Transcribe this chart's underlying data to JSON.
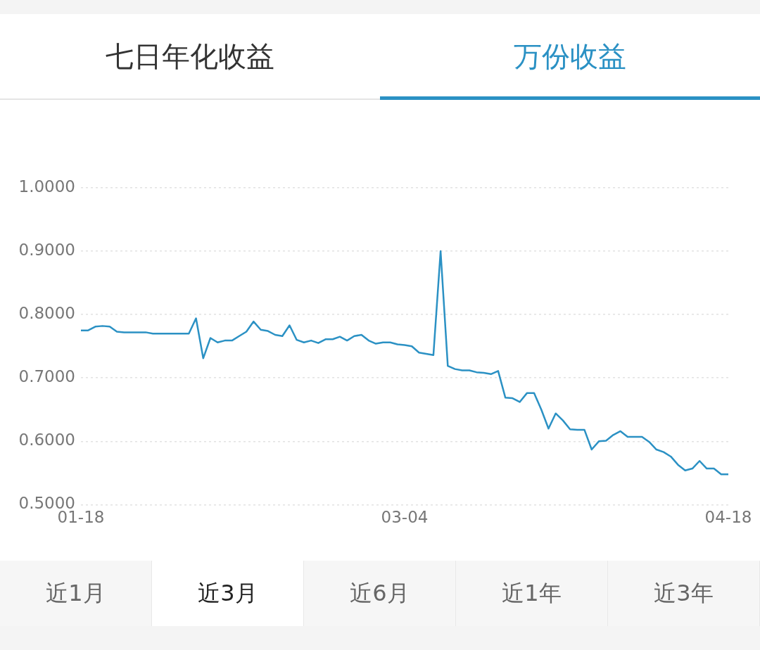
{
  "chart_data": {
    "type": "line",
    "annotations": [
      "七日年化收益",
      "万份收益",
      "近1月",
      "近3月",
      "近6月",
      "近1年",
      "近3年"
    ],
    "x": [
      "--01-18",
      "--01-19",
      "--01-20",
      "--01-21",
      "--01-22",
      "--01-23",
      "--01-24",
      "--01-25",
      "--01-26",
      "--01-27",
      "--01-28",
      "--01-29",
      "--01-30",
      "--01-31",
      "--02-01",
      "--02-02",
      "--02-03",
      "--02-04",
      "--02-05",
      "--02-06",
      "--02-07",
      "--02-08",
      "--02-09",
      "--02-10",
      "--02-11",
      "--02-12",
      "--02-13",
      "--02-14",
      "--02-15",
      "--02-16",
      "--02-17",
      "--02-18",
      "--02-19",
      "--02-20",
      "--02-21",
      "--02-22",
      "--02-23",
      "--02-24",
      "--02-25",
      "--02-26",
      "--02-27",
      "--02-28",
      "--03-01",
      "--03-02",
      "--03-03",
      "--03-04",
      "--03-05",
      "--03-06",
      "--03-07",
      "--03-08",
      "--03-09",
      "--03-10",
      "--03-11",
      "--03-12",
      "--03-13",
      "--03-14",
      "--03-15",
      "--03-16",
      "--03-17",
      "--03-18",
      "--03-19",
      "--03-20",
      "--03-21",
      "--03-22",
      "--03-23",
      "--03-24",
      "--03-25",
      "--03-26",
      "--03-27",
      "--03-28",
      "--03-29",
      "--03-30",
      "--03-31",
      "--04-01",
      "--04-02",
      "--04-03",
      "--04-04",
      "--04-05",
      "--04-06",
      "--04-07",
      "--04-08",
      "--04-09",
      "--04-10",
      "--04-11",
      "--04-12",
      "--04-13",
      "--04-14",
      "--04-15",
      "--04-16",
      "--04-17",
      "--04-18"
    ],
    "series": [
      {
        "color": "#2b91c4",
        "values": [
          0.775,
          0.775,
          0.781,
          0.782,
          0.781,
          0.773,
          0.772,
          0.772,
          0.772,
          0.772,
          0.77,
          0.77,
          0.77,
          0.77,
          0.77,
          0.77,
          0.794,
          0.731,
          0.763,
          0.756,
          0.759,
          0.759,
          0.766,
          0.773,
          0.789,
          0.776,
          0.774,
          0.768,
          0.766,
          0.783,
          0.76,
          0.756,
          0.759,
          0.755,
          0.761,
          0.761,
          0.765,
          0.759,
          0.766,
          0.768,
          0.759,
          0.754,
          0.756,
          0.756,
          0.753,
          0.752,
          0.75,
          0.74,
          0.738,
          0.736,
          0.9,
          0.719,
          0.714,
          0.712,
          0.712,
          0.709,
          0.708,
          0.706,
          0.711,
          0.669,
          0.668,
          0.662,
          0.676,
          0.676,
          0.65,
          0.62,
          0.644,
          0.633,
          0.619,
          0.618,
          0.618,
          0.587,
          0.6,
          0.601,
          0.61,
          0.616,
          0.607,
          0.607,
          0.607,
          0.599,
          0.587,
          0.583,
          0.576,
          0.563,
          0.554,
          0.557,
          0.569,
          0.557,
          0.557,
          0.548,
          0.548
        ]
      }
    ],
    "xlim": [
      "--01-18",
      "--04-18"
    ],
    "xticks": [
      {
        "value": "--01-18",
        "label": "01-18"
      },
      {
        "value": "--03-04",
        "label": "03-04"
      },
      {
        "value": "--04-18",
        "label": "04-18"
      }
    ],
    "ylim": [
      0.5,
      1.0
    ],
    "yticks": [
      {
        "value": 0.5,
        "label": "0.5000"
      },
      {
        "value": 0.6,
        "label": "0.6000"
      },
      {
        "value": 0.7,
        "label": "0.7000"
      },
      {
        "value": 0.8,
        "label": "0.8000"
      },
      {
        "value": 0.9,
        "label": "0.9000"
      },
      {
        "value": 1.0,
        "label": "1.0000"
      }
    ],
    "grid": "y",
    "marker": "none",
    "line_style": "solid",
    "legend": false
  }
}
